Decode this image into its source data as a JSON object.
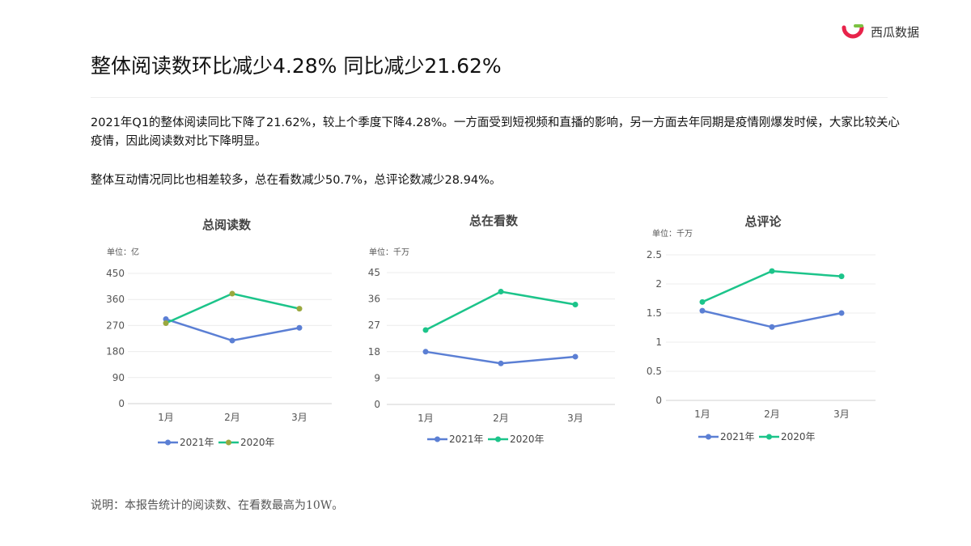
{
  "logo": {
    "text": "西瓜数据",
    "colors": {
      "red": "#e8234a",
      "green": "#7cc242"
    }
  },
  "title": "整体阅读数环比减少4.28%  同比减少21.62%",
  "paragraphs": [
    "2021年Q1的整体阅读同比下降了21.62%，较上个季度下降4.28%。一方面受到短视频和直播的影响，另一方面去年同期是疫情刚爆发时候，大家比较关心疫情，因此阅读数对比下降明显。",
    "整体互动情况同比也相差较多，总在看数减少50.7%，总评论数减少28.94%。"
  ],
  "footer": "说明：本报告统计的阅读数、在看数最高为10W。",
  "chart_data": [
    {
      "type": "line",
      "title": "总阅读数",
      "unit": "单位：亿",
      "categories": [
        "1月",
        "2月",
        "3月"
      ],
      "yticks": [
        "0",
        "90",
        "180",
        "270",
        "360",
        "450"
      ],
      "ylim": [
        0,
        450
      ],
      "grid": true,
      "legend": "bottom",
      "series": [
        {
          "name": "2021年",
          "color": "#5b7fd4",
          "marker": "#5b7fd4",
          "values": [
            292,
            218,
            262
          ]
        },
        {
          "name": "2020年",
          "color": "#1cc48a",
          "marker": "#9aa83f",
          "values": [
            278,
            380,
            328
          ]
        }
      ]
    },
    {
      "type": "line",
      "title": "总在看数",
      "unit": "单位：千万",
      "categories": [
        "1月",
        "2月",
        "3月"
      ],
      "yticks": [
        "0",
        "9",
        "18",
        "27",
        "36",
        "45"
      ],
      "ylim": [
        0,
        45
      ],
      "grid": true,
      "legend": "bottom",
      "series": [
        {
          "name": "2021年",
          "color": "#5b7fd4",
          "marker": "#5b7fd4",
          "values": [
            18,
            14,
            16.3
          ]
        },
        {
          "name": "2020年",
          "color": "#1cc48a",
          "marker": "#1cc48a",
          "values": [
            25.4,
            38.5,
            34.1
          ]
        }
      ]
    },
    {
      "type": "line",
      "title": "总评论",
      "unit": "单位：千万",
      "categories": [
        "1月",
        "2月",
        "3月"
      ],
      "yticks": [
        "0",
        "0.5",
        "1",
        "1.5",
        "2",
        "2.5"
      ],
      "ylim": [
        0,
        2.5
      ],
      "grid": true,
      "legend": "bottom",
      "series": [
        {
          "name": "2021年",
          "color": "#5b7fd4",
          "marker": "#5b7fd4",
          "values": [
            1.54,
            1.26,
            1.5
          ]
        },
        {
          "name": "2020年",
          "color": "#1cc48a",
          "marker": "#1cc48a",
          "values": [
            1.69,
            2.22,
            2.13
          ]
        }
      ]
    }
  ]
}
